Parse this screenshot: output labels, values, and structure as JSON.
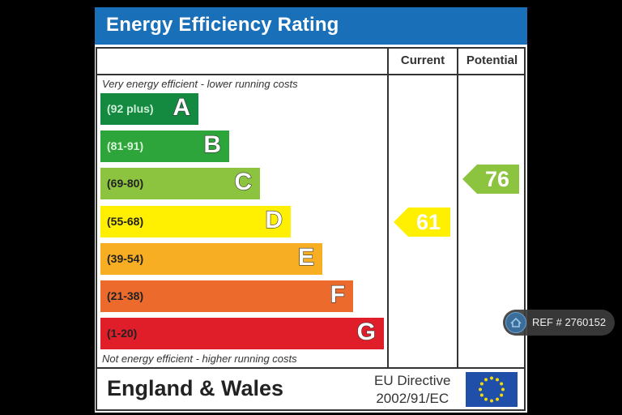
{
  "header": {
    "title": "Energy Efficiency Rating"
  },
  "columns": {
    "current": "Current",
    "potential": "Potential"
  },
  "captions": {
    "top": "Very energy efficient - lower running costs",
    "bottom": "Not energy efficient - higher running costs"
  },
  "bands": [
    {
      "letter": "A",
      "range": "(92 plus)",
      "color": "#138a3f",
      "range_color": "#cfeed8"
    },
    {
      "letter": "B",
      "range": "(81-91)",
      "color": "#2ea53a",
      "range_color": "#d9f2dc"
    },
    {
      "letter": "C",
      "range": "(69-80)",
      "color": "#8cc43f",
      "range_color": "#222222"
    },
    {
      "letter": "D",
      "range": "(55-68)",
      "color": "#ffef00",
      "range_color": "#222222"
    },
    {
      "letter": "E",
      "range": "(39-54)",
      "color": "#f7ae22",
      "range_color": "#222222"
    },
    {
      "letter": "F",
      "range": "(21-38)",
      "color": "#ec6a2b",
      "range_color": "#222222"
    },
    {
      "letter": "G",
      "range": "(1-20)",
      "color": "#e01e2a",
      "range_color": "#222222"
    }
  ],
  "ratings": {
    "current": {
      "value": "61",
      "band": "D",
      "color": "#ffef00"
    },
    "potential": {
      "value": "76",
      "band": "C",
      "color": "#8cc43f"
    }
  },
  "footer": {
    "region": "England & Wales",
    "directive_line1": "EU Directive",
    "directive_line2": "2002/91/EC",
    "flag_icon": "eu-flag-icon"
  },
  "overlay": {
    "ref": "REF # 2760152",
    "icon": "home-icon"
  }
}
